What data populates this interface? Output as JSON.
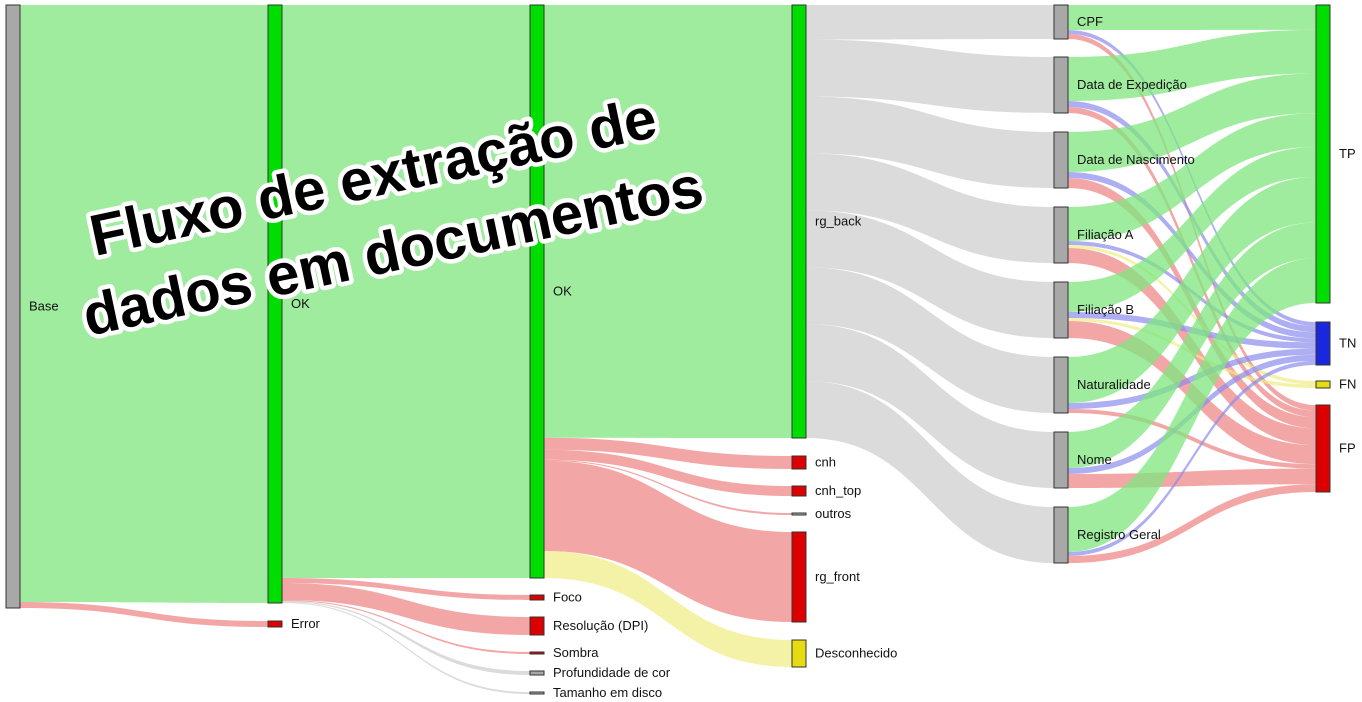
{
  "title": {
    "line1": "Fluxo de extração de",
    "line2": "dados em documentos"
  },
  "colors": {
    "green_node": "#00dd00",
    "gray_node": "#a8a8a8",
    "red_node": "#dd0000",
    "yellow_node": "#e6dc10",
    "blue_node": "#1a28dd",
    "green_link": "#7fe57f",
    "red_link": "#ee8080",
    "yellow_link": "#f0ec80",
    "gray_link": "#cccccc",
    "blue_link": "#8c8cee"
  },
  "chart_data": {
    "type": "sankey",
    "nodes": [
      {
        "id": "base",
        "label": "Base",
        "color": "gray"
      },
      {
        "id": "ok1",
        "label": "OK",
        "color": "green"
      },
      {
        "id": "error",
        "label": "Error",
        "color": "red"
      },
      {
        "id": "ok2",
        "label": "OK",
        "color": "green"
      },
      {
        "id": "foco",
        "label": "Foco",
        "color": "red"
      },
      {
        "id": "resolucao",
        "label": "Resolução (DPI)",
        "color": "red"
      },
      {
        "id": "sombra",
        "label": "Sombra",
        "color": "red"
      },
      {
        "id": "profundidade",
        "label": "Profundidade de cor",
        "color": "gray"
      },
      {
        "id": "tamanho",
        "label": "Tamanho em disco",
        "color": "gray"
      },
      {
        "id": "rg_back",
        "label": "rg_back",
        "color": "green"
      },
      {
        "id": "cnh",
        "label": "cnh",
        "color": "red"
      },
      {
        "id": "cnh_top",
        "label": "cnh_top",
        "color": "red"
      },
      {
        "id": "outros",
        "label": "outros",
        "color": "gray"
      },
      {
        "id": "rg_front",
        "label": "rg_front",
        "color": "red"
      },
      {
        "id": "desconhecido",
        "label": "Desconhecido",
        "color": "yellow"
      },
      {
        "id": "cpf",
        "label": "CPF",
        "color": "gray"
      },
      {
        "id": "data_exp",
        "label": "Data de Expedição",
        "color": "gray"
      },
      {
        "id": "data_nasc",
        "label": "Data de Nascimento",
        "color": "gray"
      },
      {
        "id": "filiacao_a",
        "label": "Filiação A",
        "color": "gray"
      },
      {
        "id": "filiacao_b",
        "label": "Filiação B",
        "color": "gray"
      },
      {
        "id": "naturalidade",
        "label": "Naturalidade",
        "color": "gray"
      },
      {
        "id": "nome",
        "label": "Nome",
        "color": "gray"
      },
      {
        "id": "registro",
        "label": "Registro Geral",
        "color": "gray"
      },
      {
        "id": "tp",
        "label": "TP",
        "color": "green"
      },
      {
        "id": "tn",
        "label": "TN",
        "color": "blue"
      },
      {
        "id": "fn",
        "label": "FN",
        "color": "yellow"
      },
      {
        "id": "fp",
        "label": "FP",
        "color": "red"
      }
    ],
    "links": [
      {
        "source": "base",
        "target": "ok1",
        "value": 598,
        "color": "green"
      },
      {
        "source": "base",
        "target": "error",
        "value": 6,
        "color": "red"
      },
      {
        "source": "ok1",
        "target": "ok2",
        "value": 574,
        "color": "green"
      },
      {
        "source": "ok1",
        "target": "foco",
        "value": 5,
        "color": "red"
      },
      {
        "source": "ok1",
        "target": "resolucao",
        "value": 17,
        "color": "red"
      },
      {
        "source": "ok1",
        "target": "sombra",
        "value": 1,
        "color": "red"
      },
      {
        "source": "ok1",
        "target": "profundidade",
        "value": 1,
        "color": "gray"
      },
      {
        "source": "ok1",
        "target": "tamanho",
        "value": 1,
        "color": "gray"
      },
      {
        "source": "ok2",
        "target": "rg_back",
        "value": 432,
        "color": "green"
      },
      {
        "source": "ok2",
        "target": "cnh",
        "value": 12,
        "color": "red"
      },
      {
        "source": "ok2",
        "target": "cnh_top",
        "value": 10,
        "color": "red"
      },
      {
        "source": "ok2",
        "target": "outros",
        "value": 1,
        "color": "red"
      },
      {
        "source": "ok2",
        "target": "rg_front",
        "value": 90,
        "color": "red"
      },
      {
        "source": "ok2",
        "target": "desconhecido",
        "value": 27,
        "color": "yellow"
      },
      {
        "source": "rg_back",
        "target": "cpf",
        "value": 34,
        "color": "gray"
      },
      {
        "source": "rg_back",
        "target": "data_exp",
        "value": 56,
        "color": "gray"
      },
      {
        "source": "rg_back",
        "target": "data_nasc",
        "value": 56,
        "color": "gray"
      },
      {
        "source": "rg_back",
        "target": "filiacao_a",
        "value": 56,
        "color": "gray"
      },
      {
        "source": "rg_back",
        "target": "filiacao_b",
        "value": 56,
        "color": "gray"
      },
      {
        "source": "rg_back",
        "target": "naturalidade",
        "value": 56,
        "color": "gray"
      },
      {
        "source": "rg_back",
        "target": "nome",
        "value": 56,
        "color": "gray"
      },
      {
        "source": "rg_back",
        "target": "registro",
        "value": 56,
        "color": "gray"
      },
      {
        "source": "cpf",
        "target": "tp",
        "value": 25,
        "color": "green"
      },
      {
        "source": "cpf",
        "target": "tn",
        "value": 4,
        "color": "blue"
      },
      {
        "source": "cpf",
        "target": "fp",
        "value": 5,
        "color": "red"
      },
      {
        "source": "data_exp",
        "target": "tp",
        "value": 44,
        "color": "green"
      },
      {
        "source": "data_exp",
        "target": "tn",
        "value": 6,
        "color": "blue"
      },
      {
        "source": "data_exp",
        "target": "fp",
        "value": 6,
        "color": "red"
      },
      {
        "source": "data_nasc",
        "target": "tp",
        "value": 40,
        "color": "green"
      },
      {
        "source": "data_nasc",
        "target": "tn",
        "value": 6,
        "color": "blue"
      },
      {
        "source": "data_nasc",
        "target": "fp",
        "value": 10,
        "color": "red"
      },
      {
        "source": "filiacao_a",
        "target": "tp",
        "value": 34,
        "color": "green"
      },
      {
        "source": "filiacao_a",
        "target": "tn",
        "value": 4,
        "color": "blue"
      },
      {
        "source": "filiacao_a",
        "target": "fn",
        "value": 3,
        "color": "yellow"
      },
      {
        "source": "filiacao_a",
        "target": "fp",
        "value": 15,
        "color": "red"
      },
      {
        "source": "filiacao_b",
        "target": "tp",
        "value": 30,
        "color": "green"
      },
      {
        "source": "filiacao_b",
        "target": "tn",
        "value": 6,
        "color": "blue"
      },
      {
        "source": "filiacao_b",
        "target": "fn",
        "value": 3,
        "color": "yellow"
      },
      {
        "source": "filiacao_b",
        "target": "fp",
        "value": 17,
        "color": "red"
      },
      {
        "source": "naturalidade",
        "target": "tp",
        "value": 46,
        "color": "green"
      },
      {
        "source": "naturalidade",
        "target": "tn",
        "value": 6,
        "color": "blue"
      },
      {
        "source": "naturalidade",
        "target": "fp",
        "value": 4,
        "color": "red"
      },
      {
        "source": "nome",
        "target": "tp",
        "value": 36,
        "color": "green"
      },
      {
        "source": "nome",
        "target": "tn",
        "value": 6,
        "color": "blue"
      },
      {
        "source": "nome",
        "target": "fp",
        "value": 14,
        "color": "red"
      },
      {
        "source": "registro",
        "target": "tp",
        "value": 45,
        "color": "green"
      },
      {
        "source": "registro",
        "target": "tn",
        "value": 4,
        "color": "blue"
      },
      {
        "source": "registro",
        "target": "fp",
        "value": 7,
        "color": "red"
      }
    ]
  }
}
